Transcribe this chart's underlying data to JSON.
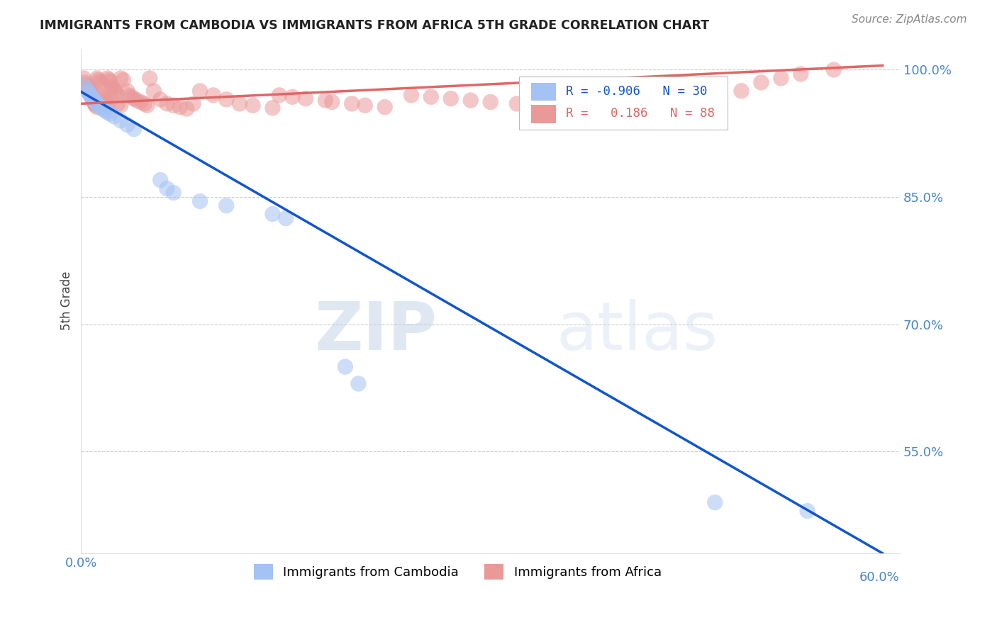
{
  "title": "IMMIGRANTS FROM CAMBODIA VS IMMIGRANTS FROM AFRICA 5TH GRADE CORRELATION CHART",
  "source": "Source: ZipAtlas.com",
  "ylabel": "5th Grade",
  "yticks": [
    0.55,
    0.7,
    0.85,
    1.0
  ],
  "ytick_labels": [
    "55.0%",
    "70.0%",
    "85.0%",
    "100.0%"
  ],
  "xlim": [
    0.0,
    0.62
  ],
  "ylim": [
    0.43,
    1.025
  ],
  "legend_r_cambodia": "-0.906",
  "legend_n_cambodia": "30",
  "legend_r_africa": "0.186",
  "legend_n_africa": "88",
  "blue_color": "#a4c2f4",
  "pink_color": "#ea9999",
  "blue_line_color": "#1155cc",
  "pink_line_color": "#e06666",
  "axis_label_color": "#4a86c8",
  "background_color": "#ffffff",
  "watermark_zip": "ZIP",
  "watermark_atlas": "atlas",
  "cam_line_x0": 0.0,
  "cam_line_y0": 0.974,
  "cam_line_x1": 0.607,
  "cam_line_y1": 0.43,
  "afr_line_x0": 0.0,
  "afr_line_y0": 0.96,
  "afr_line_x1": 0.607,
  "afr_line_y1": 1.005,
  "cam_scatter_x": [
    0.003,
    0.005,
    0.006,
    0.007,
    0.008,
    0.009,
    0.01,
    0.011,
    0.012,
    0.013,
    0.015,
    0.016,
    0.018,
    0.02,
    0.022,
    0.025,
    0.03,
    0.035,
    0.04,
    0.06,
    0.065,
    0.07,
    0.09,
    0.11,
    0.145,
    0.155,
    0.2,
    0.21,
    0.48,
    0.55
  ],
  "cam_scatter_y": [
    0.98,
    0.975,
    0.972,
    0.97,
    0.968,
    0.966,
    0.964,
    0.962,
    0.96,
    0.958,
    0.956,
    0.954,
    0.952,
    0.95,
    0.948,
    0.945,
    0.94,
    0.935,
    0.93,
    0.87,
    0.86,
    0.855,
    0.845,
    0.84,
    0.83,
    0.825,
    0.65,
    0.63,
    0.49,
    0.48
  ],
  "afr_scatter_x": [
    0.002,
    0.003,
    0.004,
    0.005,
    0.005,
    0.006,
    0.007,
    0.007,
    0.008,
    0.008,
    0.009,
    0.009,
    0.01,
    0.01,
    0.011,
    0.012,
    0.012,
    0.013,
    0.014,
    0.015,
    0.015,
    0.016,
    0.017,
    0.018,
    0.019,
    0.02,
    0.02,
    0.021,
    0.022,
    0.023,
    0.024,
    0.025,
    0.026,
    0.027,
    0.028,
    0.03,
    0.03,
    0.032,
    0.035,
    0.036,
    0.038,
    0.04,
    0.042,
    0.045,
    0.048,
    0.05,
    0.052,
    0.055,
    0.06,
    0.065,
    0.07,
    0.075,
    0.08,
    0.085,
    0.09,
    0.1,
    0.11,
    0.12,
    0.13,
    0.145,
    0.15,
    0.16,
    0.17,
    0.185,
    0.19,
    0.205,
    0.215,
    0.23,
    0.25,
    0.265,
    0.28,
    0.295,
    0.31,
    0.33,
    0.345,
    0.36,
    0.375,
    0.39,
    0.41,
    0.43,
    0.445,
    0.46,
    0.48,
    0.5,
    0.515,
    0.53,
    0.545,
    0.57
  ],
  "afr_scatter_y": [
    0.99,
    0.985,
    0.982,
    0.98,
    0.978,
    0.976,
    0.974,
    0.972,
    0.97,
    0.968,
    0.966,
    0.964,
    0.962,
    0.96,
    0.958,
    0.956,
    0.99,
    0.988,
    0.986,
    0.984,
    0.97,
    0.968,
    0.966,
    0.964,
    0.962,
    0.96,
    0.99,
    0.988,
    0.986,
    0.98,
    0.978,
    0.976,
    0.974,
    0.972,
    0.96,
    0.958,
    0.99,
    0.988,
    0.975,
    0.97,
    0.968,
    0.966,
    0.964,
    0.962,
    0.96,
    0.958,
    0.99,
    0.975,
    0.965,
    0.96,
    0.958,
    0.956,
    0.954,
    0.96,
    0.975,
    0.97,
    0.965,
    0.96,
    0.958,
    0.955,
    0.97,
    0.968,
    0.966,
    0.964,
    0.962,
    0.96,
    0.958,
    0.956,
    0.97,
    0.968,
    0.966,
    0.964,
    0.962,
    0.96,
    0.975,
    0.97,
    0.965,
    0.96,
    0.97,
    0.968,
    0.966,
    0.964,
    0.962,
    0.975,
    0.985,
    0.99,
    0.995,
    1.0
  ]
}
